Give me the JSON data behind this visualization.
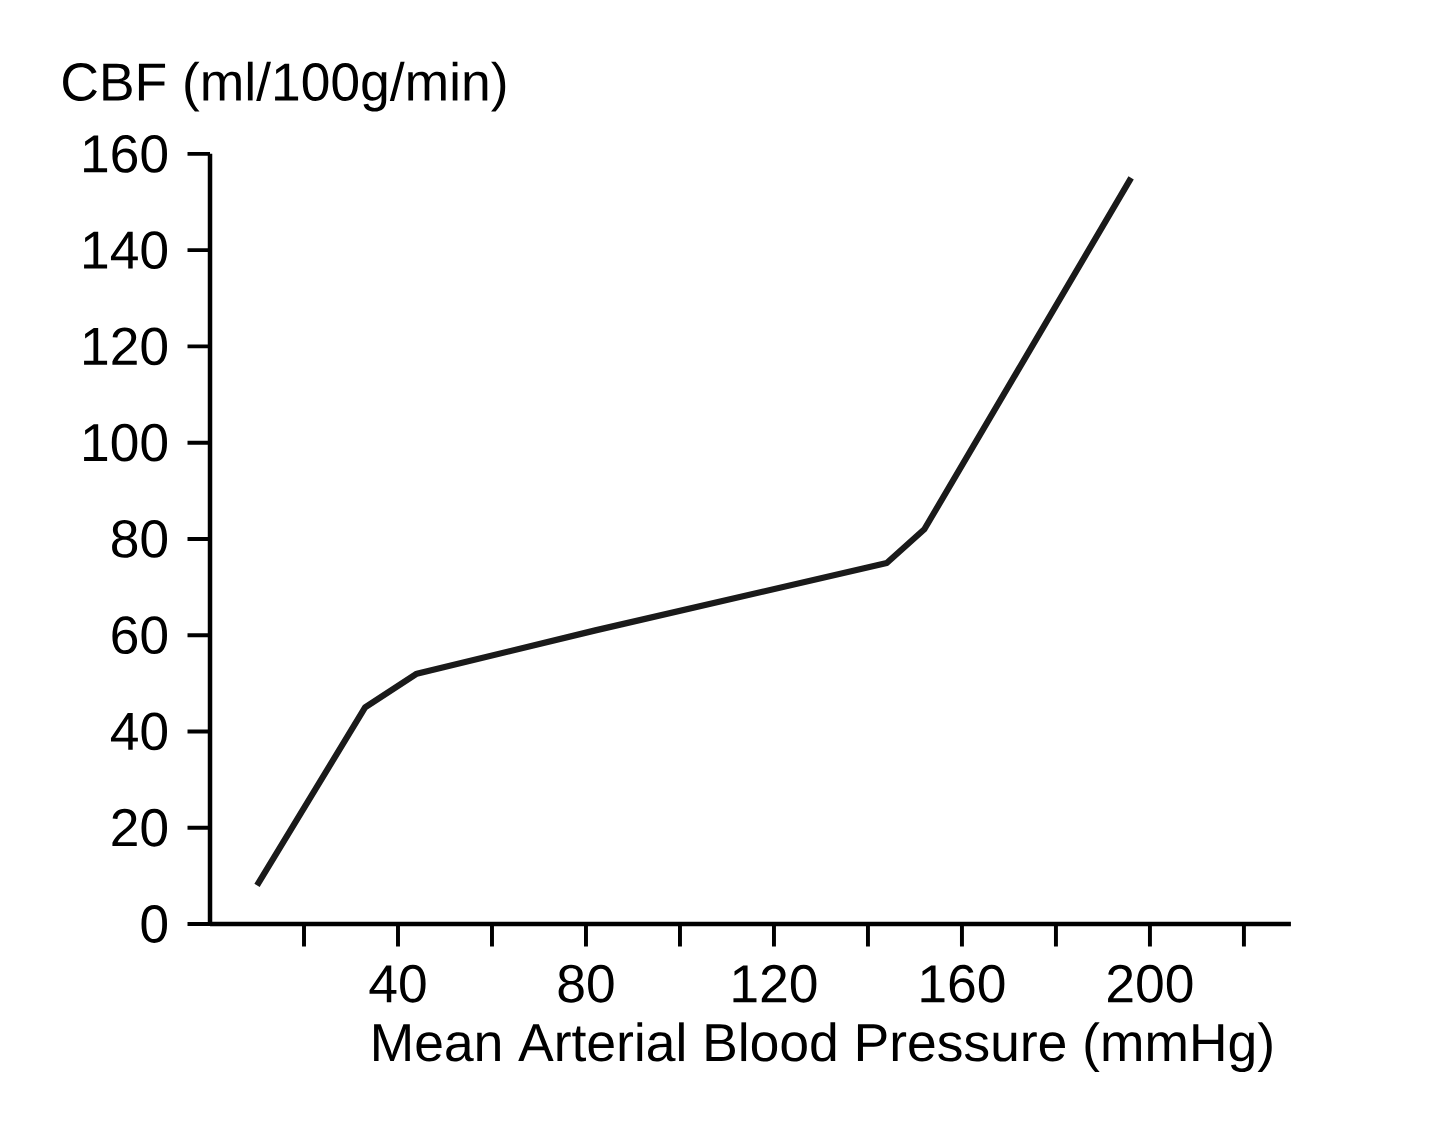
{
  "chart_data": {
    "type": "line",
    "xlabel": "Mean Arterial Blood Pressure (mmHg)",
    "ylabel": "CBF (ml/100g/min)",
    "x": [
      10,
      33,
      44,
      82,
      144,
      152,
      196
    ],
    "series": [
      {
        "color": "#1a1a1a",
        "values": [
          8,
          45,
          52,
          61,
          75,
          82,
          155
        ]
      }
    ],
    "xlim": [
      0,
      230
    ],
    "ylim": [
      0,
      160
    ],
    "xticks": [
      {
        "value": 20,
        "label": null
      },
      40,
      {
        "value": 60,
        "label": null
      },
      80,
      {
        "value": 100,
        "label": null
      },
      120,
      {
        "value": 140,
        "label": null
      },
      160,
      {
        "value": 180,
        "label": null
      },
      200,
      {
        "value": 220,
        "label": null
      }
    ],
    "yticks": [
      0,
      20,
      40,
      60,
      80,
      100,
      120,
      140,
      160
    ],
    "grid": false,
    "marker": "none",
    "line_style": "solid"
  }
}
